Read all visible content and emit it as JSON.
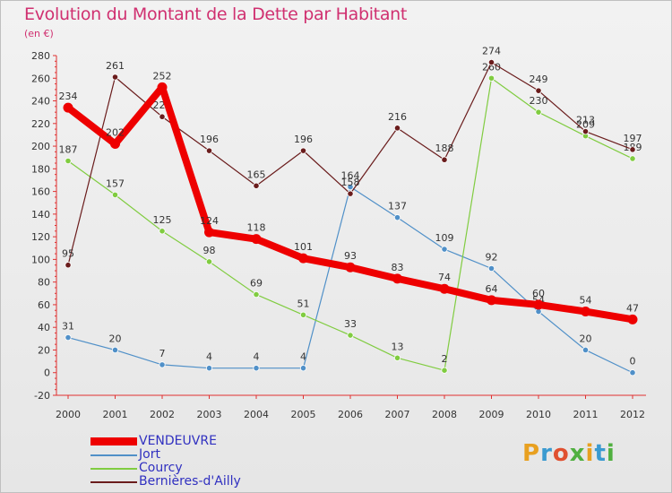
{
  "title": "Evolution du Montant de la Dette par Habitant",
  "subtitle": "(en €)",
  "logo": {
    "text": "Proxiti",
    "colors": [
      "#e8a020",
      "#3a9ad0",
      "#e05030",
      "#50b040",
      "#e8a020",
      "#3a9ad0",
      "#50b040"
    ]
  },
  "chart_data": {
    "type": "line",
    "x": [
      2000,
      2001,
      2002,
      2003,
      2004,
      2005,
      2006,
      2007,
      2008,
      2009,
      2010,
      2011,
      2012
    ],
    "ylim": [
      -20,
      280
    ],
    "yticks": [
      -20,
      0,
      20,
      40,
      60,
      80,
      100,
      120,
      140,
      160,
      180,
      200,
      220,
      240,
      260,
      280
    ],
    "grid": false,
    "legend_position": "bottom-left",
    "series": [
      {
        "name": "VENDEUVRE",
        "color": "#ee0000",
        "values": [
          234,
          202,
          252,
          124,
          118,
          101,
          93,
          83,
          74,
          64,
          60,
          54,
          47
        ]
      },
      {
        "name": "Jort",
        "color": "#5090c8",
        "values": [
          31,
          20,
          7,
          4,
          4,
          4,
          164,
          137,
          109,
          92,
          54,
          20,
          0
        ]
      },
      {
        "name": "Courcy",
        "color": "#80cc40",
        "values": [
          187,
          157,
          125,
          98,
          69,
          51,
          33,
          13,
          2,
          260,
          230,
          209,
          189
        ]
      },
      {
        "name": "Bernières-d'Ailly",
        "color": "#6a1c1c",
        "values": [
          95,
          261,
          226,
          196,
          165,
          196,
          158,
          216,
          188,
          274,
          249,
          213,
          197
        ]
      }
    ]
  }
}
